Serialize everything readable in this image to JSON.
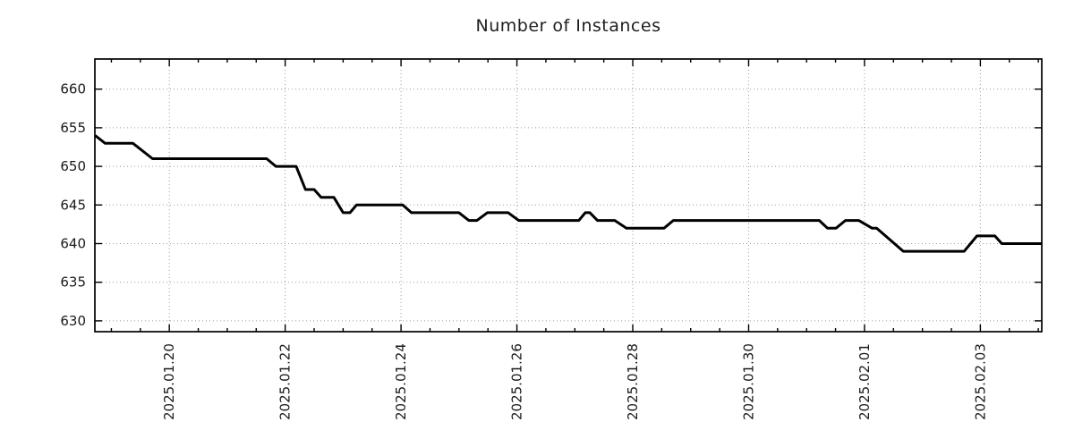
{
  "title": "Number of Instances",
  "styles": {
    "background": "#ffffff",
    "line_color": "#000000",
    "grid_color": "#9b9b9b",
    "border_color": "#000000",
    "text_color": "#1a1a1a"
  },
  "chart_data": {
    "type": "line",
    "title": "Number of Instances",
    "xlabel": "",
    "ylabel": "",
    "legend": "none",
    "grid": "dotted major gridlines, both axes",
    "x_axis": {
      "unit": "days since 2025-01-19 00:00",
      "range": [
        -0.285,
        16.06
      ],
      "major_ticks": [
        {
          "day": 1,
          "label": "2025.01.20"
        },
        {
          "day": 3,
          "label": "2025.01.22"
        },
        {
          "day": 5,
          "label": "2025.01.24"
        },
        {
          "day": 7,
          "label": "2025.01.26"
        },
        {
          "day": 9,
          "label": "2025.01.28"
        },
        {
          "day": 11,
          "label": "2025.01.30"
        },
        {
          "day": 13,
          "label": "2025.02.01"
        },
        {
          "day": 15,
          "label": "2025.02.03"
        }
      ],
      "minor_tick_interval_days": 0.5,
      "tick_label_rotation_deg": -90
    },
    "y_axis": {
      "range": [
        628.6,
        663.9
      ],
      "ticks": [
        630,
        635,
        640,
        645,
        650,
        655,
        660
      ]
    },
    "series": [
      {
        "name": "instances",
        "color": "#000000",
        "stroke_width": 3,
        "points": [
          [
            -0.28,
            654
          ],
          [
            -0.11,
            653
          ],
          [
            0.37,
            653
          ],
          [
            0.71,
            651
          ],
          [
            2.68,
            651
          ],
          [
            2.84,
            650
          ],
          [
            3.19,
            650
          ],
          [
            3.35,
            647
          ],
          [
            3.5,
            647
          ],
          [
            3.62,
            646
          ],
          [
            3.84,
            646
          ],
          [
            4.0,
            644
          ],
          [
            4.12,
            644
          ],
          [
            4.23,
            645
          ],
          [
            5.03,
            645
          ],
          [
            5.18,
            644
          ],
          [
            6.0,
            644
          ],
          [
            6.17,
            643
          ],
          [
            6.31,
            643
          ],
          [
            6.49,
            644
          ],
          [
            6.85,
            644
          ],
          [
            7.03,
            643
          ],
          [
            8.07,
            643
          ],
          [
            8.18,
            644
          ],
          [
            8.26,
            644
          ],
          [
            8.39,
            643
          ],
          [
            8.69,
            643
          ],
          [
            8.89,
            642
          ],
          [
            9.54,
            642
          ],
          [
            9.7,
            643
          ],
          [
            12.22,
            643
          ],
          [
            12.36,
            642
          ],
          [
            12.51,
            642
          ],
          [
            12.67,
            643
          ],
          [
            12.9,
            643
          ],
          [
            13.13,
            642
          ],
          [
            13.21,
            642
          ],
          [
            13.67,
            639
          ],
          [
            14.72,
            639
          ],
          [
            14.94,
            641
          ],
          [
            15.25,
            641
          ],
          [
            15.37,
            640
          ],
          [
            16.06,
            640
          ]
        ]
      }
    ]
  }
}
